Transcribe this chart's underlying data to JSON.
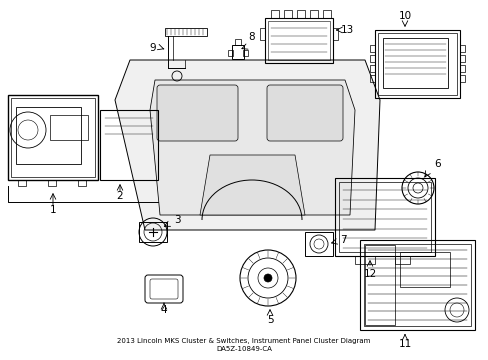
{
  "title": "2013 Lincoln MKS Cluster & Switches, Instrument Panel Cluster Diagram",
  "subtitle": "DA5Z-10849-CA",
  "background_color": "#ffffff",
  "line_color": "#000000",
  "fig_width": 4.89,
  "fig_height": 3.6,
  "dpi": 100,
  "lw": 0.7
}
